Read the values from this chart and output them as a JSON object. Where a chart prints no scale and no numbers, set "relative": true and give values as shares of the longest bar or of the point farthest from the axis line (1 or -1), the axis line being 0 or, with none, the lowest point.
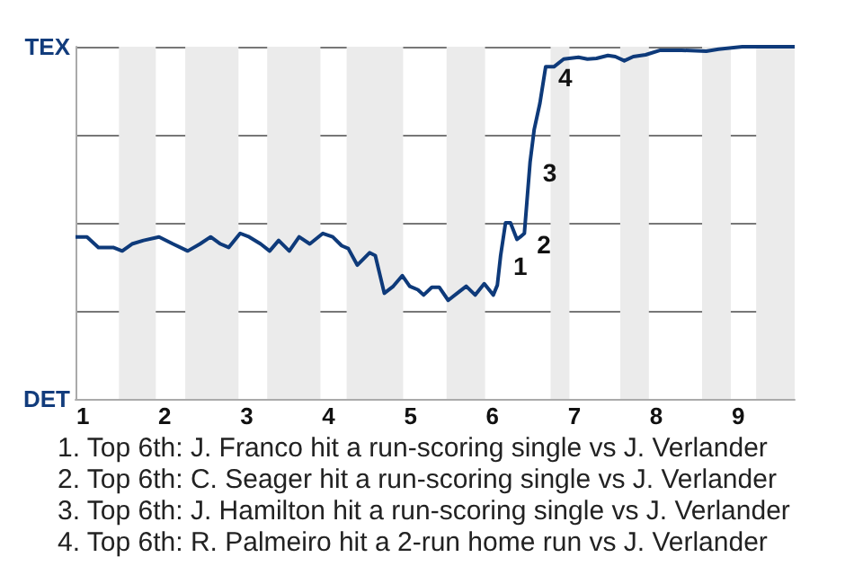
{
  "chart_data": {
    "type": "line",
    "relative": true,
    "x": [
      0.91,
      1.05,
      1.19,
      1.37,
      1.48,
      1.6,
      1.74,
      1.93,
      2.1,
      2.28,
      2.43,
      2.56,
      2.68,
      2.78,
      2.92,
      3.03,
      3.17,
      3.28,
      3.39,
      3.52,
      3.64,
      3.77,
      3.93,
      4.05,
      4.16,
      4.24,
      4.35,
      4.5,
      4.57,
      4.68,
      4.79,
      4.9,
      4.99,
      5.09,
      5.16,
      5.26,
      5.35,
      5.46,
      5.57,
      5.68,
      5.79,
      5.9,
      6.01,
      6.06,
      6.1,
      6.16,
      6.22,
      6.3,
      6.34,
      6.39,
      6.42,
      6.46,
      6.51,
      6.58,
      6.65,
      6.75,
      6.87,
      7.05,
      7.16,
      7.27,
      7.41,
      7.5,
      7.61,
      7.72,
      7.87,
      8.05,
      8.31,
      8.61,
      8.76,
      9.05,
      9.69
    ],
    "series": [
      {
        "color": "#0e3a7a",
        "values": [
          0.46,
          0.46,
          0.43,
          0.43,
          0.42,
          0.44,
          0.45,
          0.46,
          0.44,
          0.42,
          0.44,
          0.46,
          0.44,
          0.43,
          0.47,
          0.46,
          0.44,
          0.42,
          0.45,
          0.42,
          0.46,
          0.44,
          0.47,
          0.46,
          0.435,
          0.427,
          0.38,
          0.415,
          0.407,
          0.3,
          0.32,
          0.35,
          0.32,
          0.31,
          0.295,
          0.317,
          0.317,
          0.28,
          0.3,
          0.32,
          0.295,
          0.327,
          0.295,
          0.323,
          0.407,
          0.5,
          0.5,
          0.453,
          0.46,
          0.47,
          0.557,
          0.673,
          0.765,
          0.84,
          0.943,
          0.943,
          0.965,
          0.97,
          0.965,
          0.967,
          0.975,
          0.972,
          0.96,
          0.972,
          0.977,
          0.99,
          0.99,
          0.987,
          0.993,
          1,
          1
        ]
      }
    ],
    "xlim": [
      0.91,
      9.69
    ],
    "xticks": [
      1,
      2,
      3,
      4,
      5,
      6,
      7,
      8,
      9
    ],
    "grid": "y",
    "marker": "none",
    "line_style": "solid",
    "bands": [
      {
        "axis": "x",
        "from": 1.44,
        "to": 1.89,
        "color": "#ebebeb"
      },
      {
        "axis": "x",
        "from": 2.25,
        "to": 2.9,
        "color": "#ebebeb"
      },
      {
        "axis": "x",
        "from": 3.25,
        "to": 3.9,
        "color": "#ebebeb"
      },
      {
        "axis": "x",
        "from": 4.22,
        "to": 4.91,
        "color": "#ebebeb"
      },
      {
        "axis": "x",
        "from": 5.44,
        "to": 5.91,
        "color": "#ebebeb"
      },
      {
        "axis": "x",
        "from": 6.71,
        "to": 6.94,
        "color": "#ebebeb"
      },
      {
        "axis": "x",
        "from": 7.56,
        "to": 7.91,
        "color": "#ebebeb"
      },
      {
        "axis": "x",
        "from": 8.56,
        "to": 8.91,
        "color": "#ebebeb"
      },
      {
        "axis": "x",
        "from": 9.22,
        "to": 9.69,
        "color": "#ebebeb"
      }
    ],
    "annotations": [
      "TEX",
      "DET",
      {
        "text": "1",
        "x": 6.1,
        "y": 0.407
      },
      {
        "text": "2",
        "x": 6.39,
        "y": 0.47
      },
      {
        "text": "3",
        "x": 6.46,
        "y": 0.673
      },
      {
        "text": "4",
        "x": 6.65,
        "y": 0.943
      },
      "1. Top 6th: J. Franco hit a run-scoring single vs J. Verlander",
      "2. Top 6th: C. Seager hit a run-scoring single vs J. Verlander",
      "3. Top 6th: J. Hamilton hit a run-scoring single vs J. Verlander",
      "4. Top 6th: R. Palmeiro hit a 2-run home run vs J. Verlander"
    ]
  }
}
